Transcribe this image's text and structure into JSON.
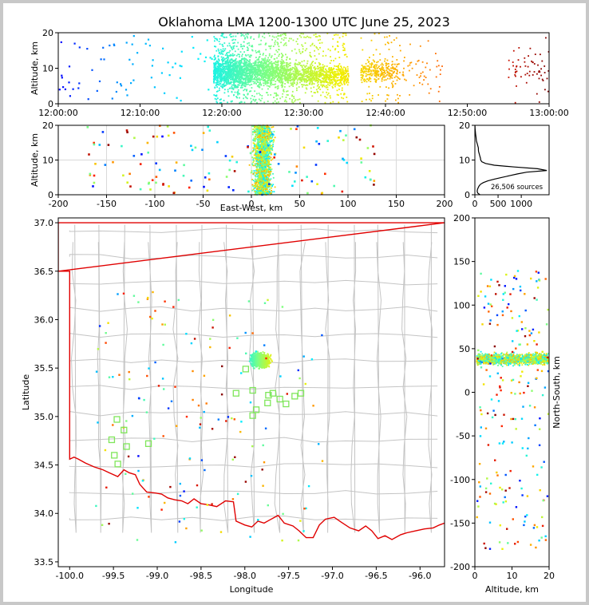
{
  "title": "Oklahoma LMA 1200-1300 UTC June 25, 2023",
  "colors": {
    "axis": "#000000",
    "grid": "#d9d9d9",
    "county_lines": "#c4c4c4",
    "state_border": "#e00000",
    "station_marker": "#7fe65a",
    "histogram_line": "#000000",
    "colormap": [
      "#0000ff",
      "#00a8ff",
      "#00f0ff",
      "#7fff80",
      "#f0f000",
      "#ffa000",
      "#ff2000",
      "#800000"
    ]
  },
  "chart_data": [
    {
      "id": "time_altitude",
      "type": "scatter",
      "ylabel": "Altitude, km",
      "xlim": [
        "12:00:00",
        "13:00:00"
      ],
      "ylim": [
        0,
        20
      ],
      "xticks": [
        "12:00:00",
        "12:10:00",
        "12:20:00",
        "12:30:00",
        "12:40:00",
        "12:50:00",
        "13:00:00"
      ],
      "yticks": [
        "0",
        "10",
        "20"
      ],
      "color_by": "time",
      "clusters": [
        {
          "t_range": [
            "12:19:00",
            "12:23:30"
          ],
          "alt_center": 9,
          "alt_spread": 7,
          "density": "very high"
        },
        {
          "t_range": [
            "12:23:30",
            "12:28:00"
          ],
          "alt_center": 9,
          "alt_spread": 6,
          "density": "high"
        },
        {
          "t_range": [
            "12:28:00",
            "12:35:30"
          ],
          "alt_center": 8,
          "alt_spread": 5,
          "density": "high"
        },
        {
          "t_range": [
            "12:37:00",
            "12:41:30"
          ],
          "alt_center": 9,
          "alt_spread": 5,
          "density": "medium"
        },
        {
          "t_range": [
            "12:41:30",
            "12:47:00"
          ],
          "alt_center": 9,
          "alt_spread": 6,
          "density": "low"
        },
        {
          "t_range": [
            "12:55:00",
            "13:00:00"
          ],
          "alt_center": 10,
          "alt_spread": 7,
          "density": "low"
        }
      ],
      "background_sources": "sparse scatter 12:00:00-12:19:00, 0-20 km"
    },
    {
      "id": "ew_altitude",
      "type": "scatter",
      "xlabel": "East-West, km",
      "ylabel": "Altitude, km",
      "xlim": [
        -200,
        200
      ],
      "ylim": [
        0,
        20
      ],
      "xticks": [
        "-200",
        "-150",
        "-100",
        "-50",
        "0",
        "50",
        "100",
        "150",
        "200"
      ],
      "yticks": [
        "0",
        "10",
        "20"
      ],
      "core": {
        "x_center": 12,
        "x_spread": 16,
        "alt_range": [
          0,
          20
        ]
      }
    },
    {
      "id": "altitude_histogram",
      "type": "line",
      "xlim": [
        0,
        1600
      ],
      "ylim": [
        0,
        20
      ],
      "xticks": [
        "0",
        "500",
        "1000"
      ],
      "yticks": [
        "0",
        "10",
        "20"
      ],
      "annotation": "26,506 sources",
      "counts_by_alt": [
        [
          0,
          110
        ],
        [
          0.5,
          60
        ],
        [
          1,
          50
        ],
        [
          1.5,
          55
        ],
        [
          2,
          70
        ],
        [
          2.5,
          90
        ],
        [
          3,
          120
        ],
        [
          3.5,
          180
        ],
        [
          4,
          280
        ],
        [
          4.5,
          420
        ],
        [
          5,
          580
        ],
        [
          5.5,
          750
        ],
        [
          6,
          920
        ],
        [
          6.5,
          1120
        ],
        [
          7,
          1550
        ],
        [
          7.5,
          1350
        ],
        [
          8,
          850
        ],
        [
          8.5,
          420
        ],
        [
          9,
          230
        ],
        [
          9.5,
          150
        ],
        [
          10,
          125
        ],
        [
          10.5,
          120
        ],
        [
          11,
          110
        ],
        [
          11.5,
          100
        ],
        [
          12,
          90
        ],
        [
          12.5,
          80
        ],
        [
          13,
          75
        ],
        [
          13.5,
          75
        ],
        [
          14,
          65
        ],
        [
          14.5,
          55
        ],
        [
          15,
          45
        ],
        [
          15.5,
          35
        ],
        [
          16,
          30
        ],
        [
          16.5,
          25
        ],
        [
          17,
          20
        ],
        [
          17.5,
          15
        ],
        [
          18,
          12
        ],
        [
          18.5,
          8
        ],
        [
          19,
          5
        ],
        [
          19.5,
          3
        ],
        [
          20,
          2
        ]
      ]
    },
    {
      "id": "plan_view",
      "type": "scatter",
      "xlabel": "Longitude",
      "ylabel": "Latitude",
      "xlim": [
        -100.13,
        -95.72
      ],
      "ylim": [
        33.45,
        37.05
      ],
      "xticks": [
        "-100.0",
        "-99.5",
        "-99.0",
        "-98.5",
        "-98.0",
        "-97.5",
        "-97.0",
        "-96.5",
        "-96.0"
      ],
      "yticks": [
        "33.5",
        "34.0",
        "34.5",
        "35.0",
        "35.5",
        "36.0",
        "36.5",
        "37.0"
      ],
      "core": {
        "lon_center": -97.82,
        "lat_center": 35.58,
        "lon_spread": 0.16,
        "lat_spread": 0.11
      },
      "stations": [
        [
          -99.46,
          34.97
        ],
        [
          -99.38,
          34.86
        ],
        [
          -99.52,
          34.76
        ],
        [
          -99.35,
          34.69
        ],
        [
          -99.49,
          34.6
        ],
        [
          -99.45,
          34.51
        ],
        [
          -99.1,
          34.72
        ],
        [
          -97.99,
          35.49
        ],
        [
          -98.1,
          35.24
        ],
        [
          -97.91,
          35.27
        ],
        [
          -97.73,
          35.22
        ],
        [
          -97.68,
          35.24
        ],
        [
          -97.6,
          35.18
        ],
        [
          -97.53,
          35.13
        ],
        [
          -97.43,
          35.21
        ],
        [
          -97.36,
          35.24
        ],
        [
          -97.87,
          35.07
        ],
        [
          -97.74,
          35.14
        ],
        [
          -97.91,
          35.01
        ]
      ],
      "state_border": [
        [
          -100.0,
          36.5
        ],
        [
          -100.13,
          36.5
        ],
        [
          -100.13,
          37.0
        ],
        [
          -95.72,
          37.0
        ],
        [
          -100.13,
          36.5
        ],
        [
          -100.0,
          36.5
        ],
        [
          -100.0,
          34.56
        ],
        [
          -99.95,
          34.58
        ],
        [
          -99.9,
          34.56
        ],
        [
          -99.82,
          34.52
        ],
        [
          -99.72,
          34.48
        ],
        [
          -99.62,
          34.45
        ],
        [
          -99.55,
          34.42
        ],
        [
          -99.45,
          34.38
        ],
        [
          -99.38,
          34.45
        ],
        [
          -99.32,
          34.42
        ],
        [
          -99.25,
          34.4
        ],
        [
          -99.2,
          34.3
        ],
        [
          -99.12,
          34.22
        ],
        [
          -99.02,
          34.21
        ],
        [
          -98.95,
          34.2
        ],
        [
          -98.88,
          34.16
        ],
        [
          -98.8,
          34.14
        ],
        [
          -98.72,
          34.13
        ],
        [
          -98.65,
          34.1
        ],
        [
          -98.58,
          34.15
        ],
        [
          -98.5,
          34.1
        ],
        [
          -98.42,
          34.09
        ],
        [
          -98.32,
          34.07
        ],
        [
          -98.22,
          34.13
        ],
        [
          -98.13,
          34.12
        ],
        [
          -98.1,
          33.92
        ],
        [
          -98.0,
          33.88
        ],
        [
          -97.92,
          33.86
        ],
        [
          -97.85,
          33.92
        ],
        [
          -97.78,
          33.9
        ],
        [
          -97.72,
          33.93
        ],
        [
          -97.62,
          33.98
        ],
        [
          -97.55,
          33.9
        ],
        [
          -97.45,
          33.87
        ],
        [
          -97.38,
          33.82
        ],
        [
          -97.3,
          33.75
        ],
        [
          -97.22,
          33.75
        ],
        [
          -97.15,
          33.88
        ],
        [
          -97.08,
          33.94
        ],
        [
          -96.98,
          33.96
        ],
        [
          -96.9,
          33.91
        ],
        [
          -96.8,
          33.85
        ],
        [
          -96.7,
          33.82
        ],
        [
          -96.62,
          33.87
        ],
        [
          -96.55,
          33.82
        ],
        [
          -96.48,
          33.74
        ],
        [
          -96.4,
          33.77
        ],
        [
          -96.32,
          33.73
        ],
        [
          -96.22,
          33.78
        ],
        [
          -96.15,
          33.8
        ],
        [
          -96.05,
          33.82
        ],
        [
          -95.95,
          33.84
        ],
        [
          -95.85,
          33.85
        ],
        [
          -95.78,
          33.88
        ],
        [
          -95.72,
          33.9
        ]
      ]
    },
    {
      "id": "altitude_northsouth",
      "type": "scatter",
      "xlabel": "Altitude, km",
      "ylabel": "North-South, km",
      "xlim": [
        0,
        20
      ],
      "ylim": [
        -200,
        200
      ],
      "xticks": [
        "0",
        "10",
        "20"
      ],
      "yticks": [
        "200",
        "150",
        "100",
        "50",
        "0",
        "-50",
        "-100",
        "-150",
        "-200"
      ],
      "core": {
        "ns_center": 38,
        "ns_spread": 10,
        "alt_range": [
          0,
          20
        ]
      }
    }
  ]
}
